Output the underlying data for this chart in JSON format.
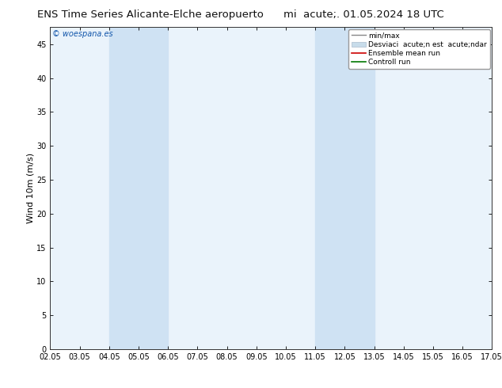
{
  "title_left": "ENS Time Series Alicante-Elche aeropuerto",
  "title_right": "mi  acute;. 01.05.2024 18 UTC",
  "ylabel": "Wind 10m (m/s)",
  "watermark": "© woespana.es",
  "x_labels": [
    "02.05",
    "03.05",
    "04.05",
    "05.05",
    "06.05",
    "07.05",
    "08.05",
    "09.05",
    "10.05",
    "11.05",
    "12.05",
    "13.05",
    "14.05",
    "15.05",
    "16.05",
    "17.05"
  ],
  "x_ticks": [
    0,
    1,
    2,
    3,
    4,
    5,
    6,
    7,
    8,
    9,
    10,
    11,
    12,
    13,
    14,
    15
  ],
  "ylim": [
    0,
    47.5
  ],
  "yticks": [
    0,
    5,
    10,
    15,
    20,
    25,
    30,
    35,
    40,
    45
  ],
  "shaded_bands": [
    {
      "x_start": 2,
      "x_end": 4,
      "color": "#cfe2f3"
    },
    {
      "x_start": 9,
      "x_end": 11,
      "color": "#cfe2f3"
    }
  ],
  "plot_bg_color": "#eaf3fb",
  "fig_bg_color": "#ffffff",
  "title_fontsize": 9.5,
  "axis_fontsize": 8,
  "tick_fontsize": 7,
  "watermark_color": "#1155aa",
  "legend_edge_color": "#999999",
  "minmax_color": "#888888",
  "std_fill_color": "#c8dcea",
  "std_edge_color": "#aabbcc",
  "ensemble_color": "#cc0000",
  "control_color": "#007700"
}
